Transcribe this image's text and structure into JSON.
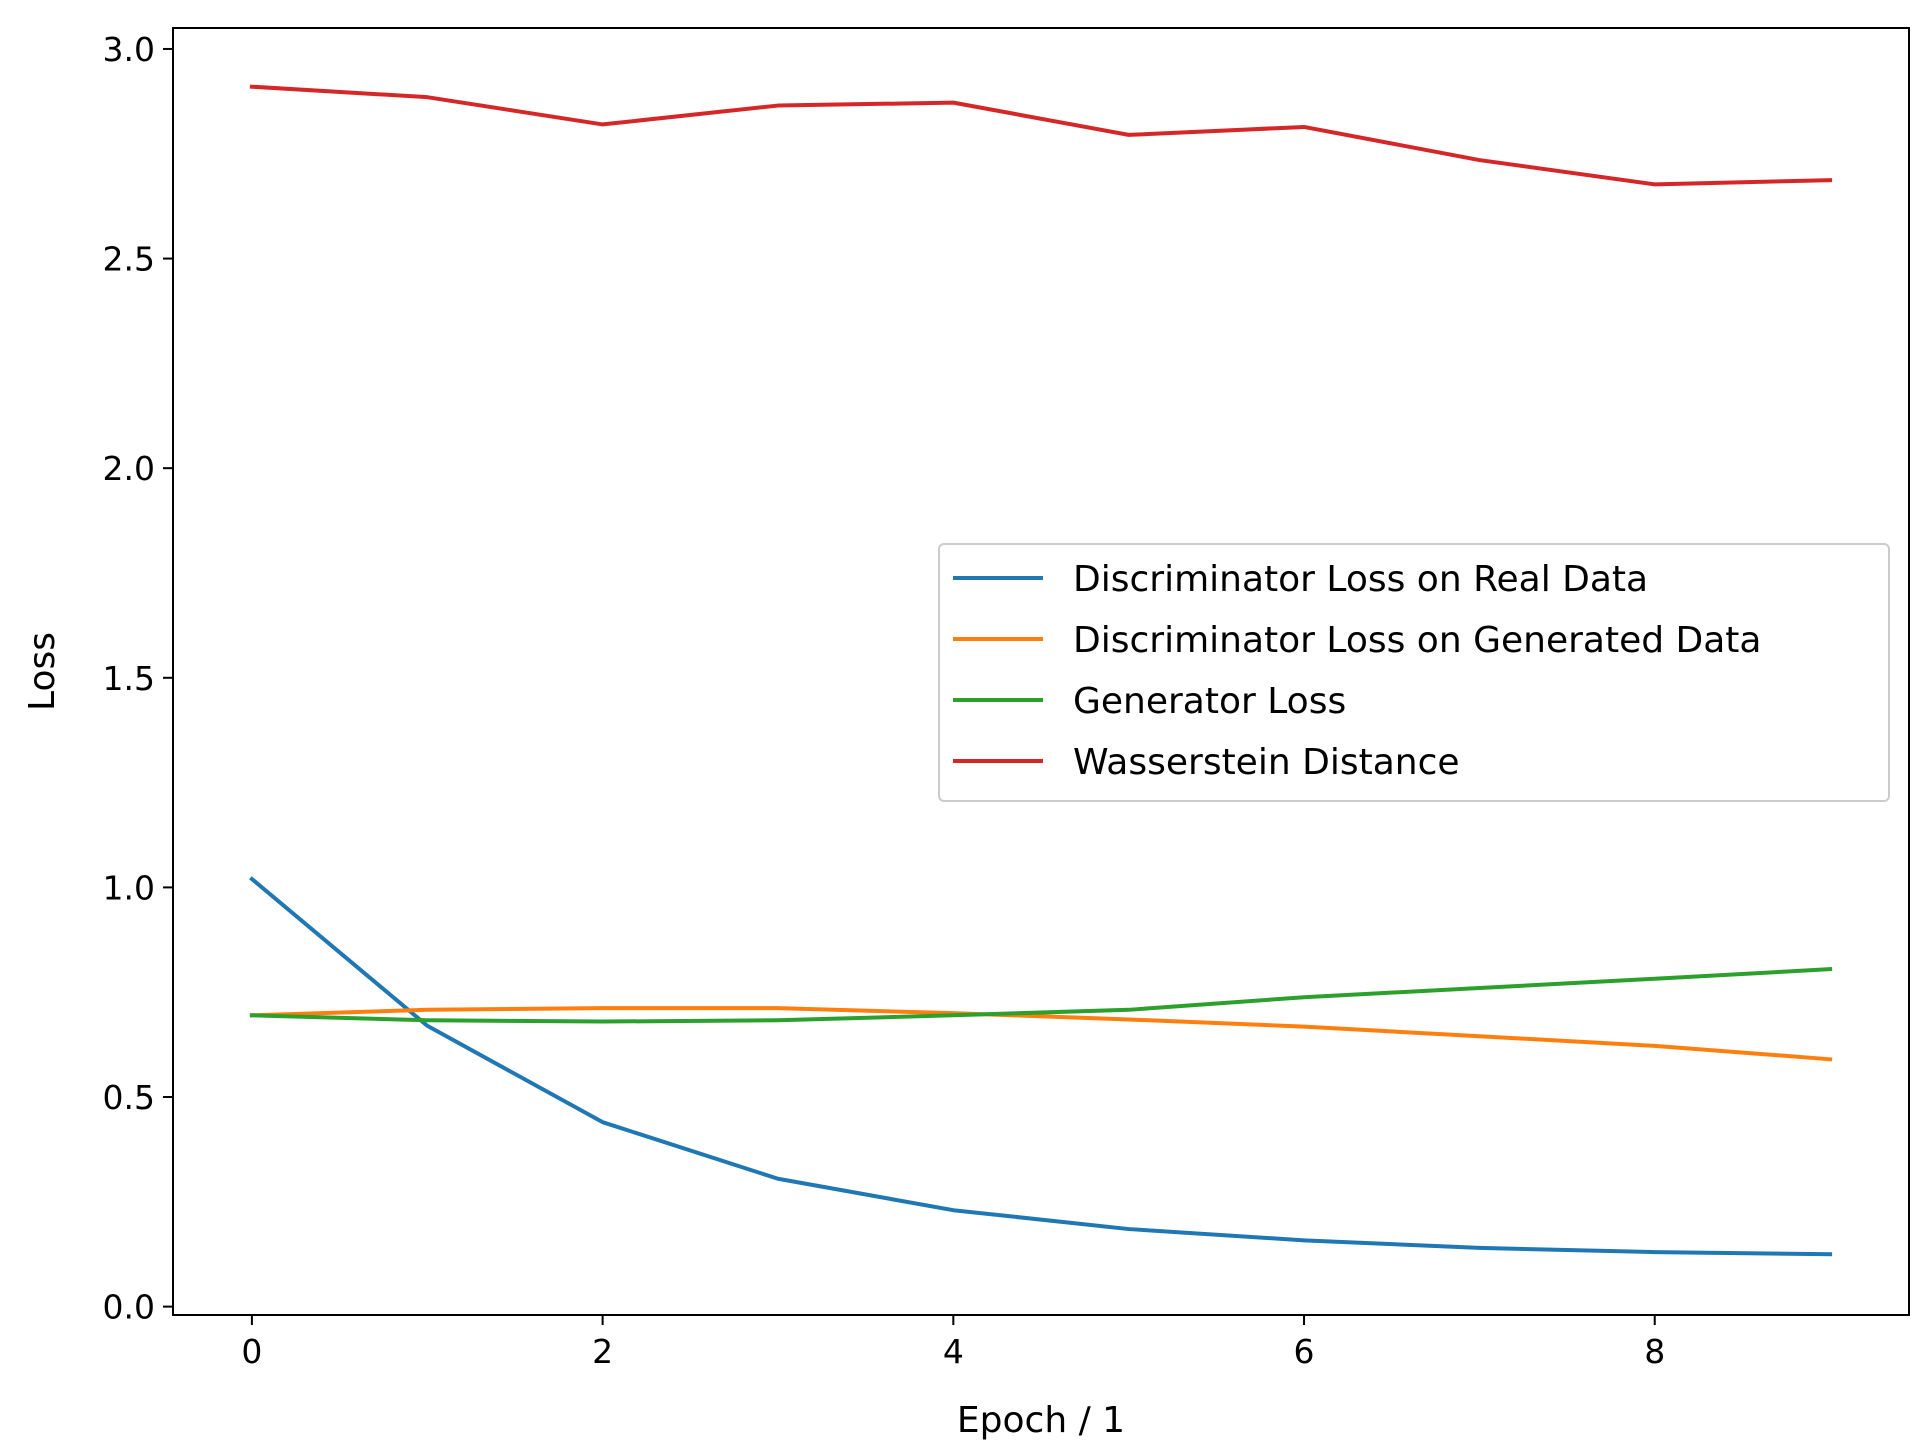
{
  "chart_data": {
    "type": "line",
    "title": "",
    "xlabel": "Epoch / 1",
    "ylabel": "Loss",
    "xlim": [
      -0.45,
      9.45
    ],
    "ylim": [
      -0.02,
      3.05
    ],
    "xticks": [
      0,
      2,
      4,
      6,
      8
    ],
    "xtick_labels": [
      "0",
      "2",
      "4",
      "6",
      "8"
    ],
    "yticks": [
      0.0,
      0.5,
      1.0,
      1.5,
      2.0,
      2.5,
      3.0
    ],
    "ytick_labels": [
      "0.0",
      "0.5",
      "1.0",
      "1.5",
      "2.0",
      "2.5",
      "3.0"
    ],
    "grid": false,
    "legend_position": "center-right",
    "x": [
      0,
      1,
      2,
      3,
      4,
      5,
      6,
      7,
      8,
      9
    ],
    "series": [
      {
        "name": "Discriminator Loss on Real Data",
        "color": "#1f77b4",
        "values": [
          1.02,
          0.67,
          0.44,
          0.305,
          0.23,
          0.185,
          0.158,
          0.14,
          0.13,
          0.125
        ]
      },
      {
        "name": "Discriminator Loss on Generated Data",
        "color": "#ff7f0e",
        "values": [
          0.695,
          0.708,
          0.712,
          0.712,
          0.7,
          0.685,
          0.668,
          0.645,
          0.622,
          0.59
        ]
      },
      {
        "name": "Generator Loss",
        "color": "#2ca02c",
        "values": [
          0.695,
          0.683,
          0.68,
          0.683,
          0.695,
          0.708,
          0.738,
          0.76,
          0.782,
          0.805
        ]
      },
      {
        "name": "Wasserstein Distance",
        "color": "#d62728",
        "values": [
          2.91,
          2.885,
          2.82,
          2.865,
          2.872,
          2.795,
          2.814,
          2.735,
          2.677,
          2.687
        ]
      }
    ]
  }
}
